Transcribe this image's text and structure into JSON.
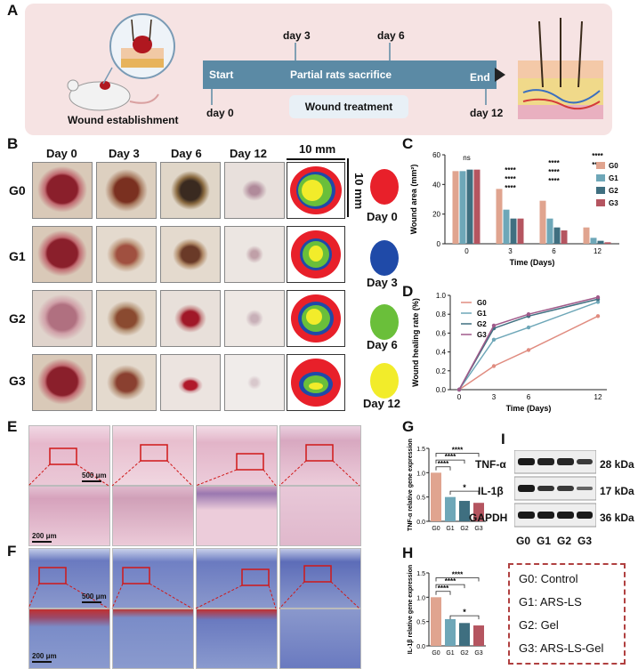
{
  "panels": {
    "A": "A",
    "B": "B",
    "C": "C",
    "D": "D",
    "E": "E",
    "F": "F",
    "G": "G",
    "H": "H",
    "I": "I"
  },
  "panelA": {
    "wound_establishment": "Wound establishment",
    "start": "Start",
    "day0": "day 0",
    "day3": "day 3",
    "day6": "day 6",
    "partial": "Partial rats sacrifice",
    "end": "End",
    "day12": "day 12",
    "treatment": "Wound treatment"
  },
  "panelB": {
    "col_headers": [
      "Day 0",
      "Day 3",
      "Day 6",
      "Day 12"
    ],
    "row_headers": [
      "G0",
      "G1",
      "G2",
      "G3"
    ],
    "scale_h": "10 mm",
    "scale_v": "10 mm",
    "legend": [
      {
        "label": "Day 0",
        "color": "#e8202a"
      },
      {
        "label": "Day 3",
        "color": "#1f4aa8"
      },
      {
        "label": "Day 6",
        "color": "#6abf3a"
      },
      {
        "label": "Day 12",
        "color": "#f2ec2a"
      }
    ]
  },
  "scalebars": {
    "e_top": "500 μm",
    "e_bot": "200 μm",
    "f_top": "500 μm",
    "f_bot": "200 μm"
  },
  "western": {
    "labels": [
      "TNF-α",
      "IL-1β",
      "GAPDH"
    ],
    "kda": [
      "28 kDa",
      "17 kDa",
      "36 kDa"
    ],
    "lanes": [
      "G0",
      "G1",
      "G2",
      "G3"
    ]
  },
  "group_legend": [
    "G0: Control",
    "G1: ARS-LS",
    "G2: Gel",
    "G3: ARS-LS-Gel"
  ],
  "chart_data": [
    {
      "id": "C",
      "type": "bar",
      "xlabel": "Time (Days)",
      "ylabel": "Wound area (mm²)",
      "categories": [
        "0",
        "3",
        "6",
        "12"
      ],
      "ylim": [
        0,
        60
      ],
      "series": [
        {
          "name": "G0",
          "color": "#e0a48f",
          "values": [
            49,
            37,
            29,
            11
          ]
        },
        {
          "name": "G1",
          "color": "#6ea7b8",
          "values": [
            49,
            23,
            17,
            4
          ]
        },
        {
          "name": "G2",
          "color": "#3f6f80",
          "values": [
            50,
            17,
            11,
            2
          ]
        },
        {
          "name": "G3",
          "color": "#b55560",
          "values": [
            50,
            17,
            9,
            1
          ]
        }
      ],
      "annotations": [
        "ns",
        "****"
      ]
    },
    {
      "id": "D",
      "type": "line",
      "xlabel": "Time (Days)",
      "ylabel": "Wound healing rate (%)",
      "x": [
        "0",
        "3",
        "6",
        "12"
      ],
      "ylim": [
        0,
        1.0
      ],
      "yticks": [
        "0.0",
        "0.2",
        "0.4",
        "0.6",
        "0.8",
        "1.0"
      ],
      "series": [
        {
          "name": "G0",
          "color": "#e08c80",
          "values": [
            0,
            0.25,
            0.42,
            0.78
          ]
        },
        {
          "name": "G1",
          "color": "#6ea7b8",
          "values": [
            0,
            0.53,
            0.66,
            0.93
          ]
        },
        {
          "name": "G2",
          "color": "#3f6f80",
          "values": [
            0,
            0.65,
            0.78,
            0.96
          ]
        },
        {
          "name": "G3",
          "color": "#a05a8a",
          "values": [
            0,
            0.68,
            0.8,
            0.98
          ]
        }
      ]
    },
    {
      "id": "G",
      "type": "bar",
      "ylabel": "TNF-α relative gene expression",
      "categories": [
        "G0",
        "G1",
        "G2",
        "G3"
      ],
      "ylim": [
        0,
        1.5
      ],
      "yticks": [
        "0.0",
        "0.5",
        "1.0",
        "1.5"
      ],
      "values": [
        1.0,
        0.5,
        0.42,
        0.38
      ],
      "colors": [
        "#e0a48f",
        "#6ea7b8",
        "#3f6f80",
        "#b55560"
      ],
      "annotations": [
        "****",
        "****",
        "****",
        "*"
      ]
    },
    {
      "id": "H",
      "type": "bar",
      "ylabel": "IL-1β relative gene expression",
      "categories": [
        "G0",
        "G1",
        "G2",
        "G3"
      ],
      "ylim": [
        0,
        1.5
      ],
      "yticks": [
        "0.0",
        "0.5",
        "1.0",
        "1.5"
      ],
      "values": [
        1.0,
        0.55,
        0.47,
        0.42
      ],
      "colors": [
        "#e0a48f",
        "#6ea7b8",
        "#3f6f80",
        "#b55560"
      ],
      "annotations": [
        "****",
        "****",
        "****",
        "*"
      ]
    }
  ]
}
